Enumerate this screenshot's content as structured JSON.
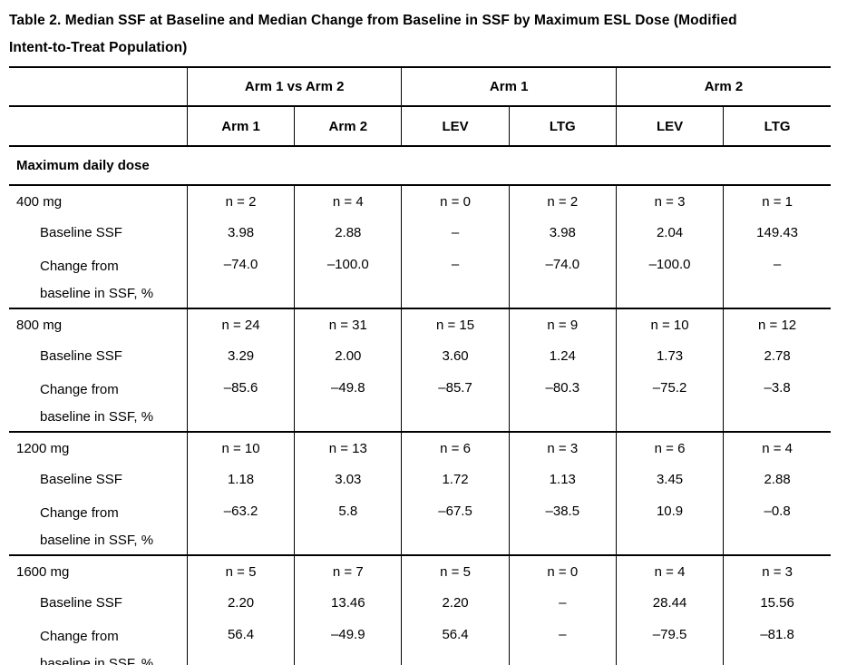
{
  "title": {
    "line1": "Table 2. Median SSF at Baseline and Median Change from Baseline in SSF by Maximum ESL Dose (Modified",
    "line2": "Intent-to-Treat Population)"
  },
  "colors": {
    "text": "#000000",
    "background": "#ffffff",
    "border": "#000000"
  },
  "table": {
    "col_groups": [
      {
        "label": "Arm 1 vs Arm 2"
      },
      {
        "label": "Arm 1"
      },
      {
        "label": "Arm 2"
      }
    ],
    "sub_headers": [
      "Arm 1",
      "Arm 2",
      "LEV",
      "LTG",
      "LEV",
      "LTG"
    ],
    "section_label": "Maximum daily dose",
    "row_labels": {
      "baseline": "Baseline SSF",
      "change_line1": "Change from",
      "change_line2": "baseline in SSF, %"
    },
    "groups": [
      {
        "dose": "400 mg",
        "n": [
          "n = 2",
          "n = 4",
          "n = 0",
          "n = 2",
          "n = 3",
          "n = 1"
        ],
        "baseline_ssf": [
          "3.98",
          "2.88",
          "–",
          "3.98",
          "2.04",
          "149.43"
        ],
        "change_pct": [
          "–74.0",
          "–100.0",
          "–",
          "–74.0",
          "–100.0",
          "–"
        ]
      },
      {
        "dose": "800 mg",
        "n": [
          "n = 24",
          "n = 31",
          "n = 15",
          "n = 9",
          "n = 10",
          "n = 12"
        ],
        "baseline_ssf": [
          "3.29",
          "2.00",
          "3.60",
          "1.24",
          "1.73",
          "2.78"
        ],
        "change_pct": [
          "–85.6",
          "–49.8",
          "–85.7",
          "–80.3",
          "–75.2",
          "–3.8"
        ]
      },
      {
        "dose": "1200 mg",
        "n": [
          "n = 10",
          "n = 13",
          "n = 6",
          "n = 3",
          "n = 6",
          "n = 4"
        ],
        "baseline_ssf": [
          "1.18",
          "3.03",
          "1.72",
          "1.13",
          "3.45",
          "2.88"
        ],
        "change_pct": [
          "–63.2",
          "5.8",
          "–67.5",
          "–38.5",
          "10.9",
          "–0.8"
        ]
      },
      {
        "dose": "1600 mg",
        "n": [
          "n = 5",
          "n = 7",
          "n = 5",
          "n = 0",
          "n = 4",
          "n = 3"
        ],
        "baseline_ssf": [
          "2.20",
          "13.46",
          "2.20",
          "–",
          "28.44",
          "15.56"
        ],
        "change_pct": [
          "56.4",
          "–49.9",
          "56.4",
          "–",
          "–79.5",
          "–81.8"
        ]
      }
    ]
  }
}
